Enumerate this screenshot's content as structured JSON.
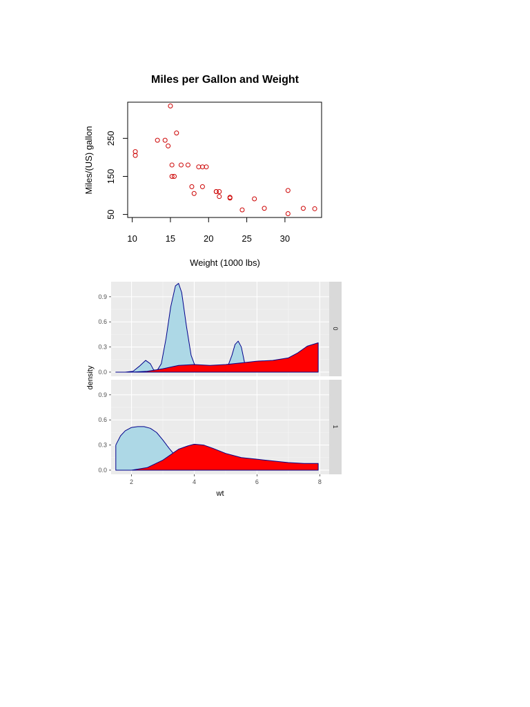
{
  "chart_data": [
    {
      "type": "scatter",
      "title": "Miles per Gallon and Weight",
      "xlabel": "Weight (1000 lbs)",
      "ylabel": "Miles/(US) gallon",
      "xlim": [
        9.4,
        34.8
      ],
      "ylim": [
        42,
        345
      ],
      "xticks": [
        "10",
        "15",
        "20",
        "25",
        "30"
      ],
      "xtick_values": [
        10,
        15,
        20,
        25,
        30
      ],
      "yticks": [
        "50",
        "150",
        "250"
      ],
      "ytick_values": [
        50,
        150,
        250
      ],
      "grid": false,
      "marker_color": "#cc0000",
      "points": [
        {
          "x": 10.4,
          "y": 215
        },
        {
          "x": 10.4,
          "y": 205
        },
        {
          "x": 13.3,
          "y": 245
        },
        {
          "x": 14.3,
          "y": 245
        },
        {
          "x": 14.7,
          "y": 230
        },
        {
          "x": 15.0,
          "y": 335
        },
        {
          "x": 15.2,
          "y": 180
        },
        {
          "x": 15.2,
          "y": 150
        },
        {
          "x": 15.5,
          "y": 150
        },
        {
          "x": 15.8,
          "y": 264
        },
        {
          "x": 16.4,
          "y": 180
        },
        {
          "x": 17.3,
          "y": 180
        },
        {
          "x": 17.8,
          "y": 123
        },
        {
          "x": 18.1,
          "y": 105
        },
        {
          "x": 18.7,
          "y": 175
        },
        {
          "x": 19.2,
          "y": 175
        },
        {
          "x": 19.2,
          "y": 123
        },
        {
          "x": 19.7,
          "y": 175
        },
        {
          "x": 21.0,
          "y": 110
        },
        {
          "x": 21.0,
          "y": 110
        },
        {
          "x": 21.4,
          "y": 110
        },
        {
          "x": 21.4,
          "y": 97
        },
        {
          "x": 22.8,
          "y": 93
        },
        {
          "x": 22.8,
          "y": 95
        },
        {
          "x": 24.4,
          "y": 62
        },
        {
          "x": 26.0,
          "y": 91
        },
        {
          "x": 27.3,
          "y": 66
        },
        {
          "x": 30.4,
          "y": 52
        },
        {
          "x": 30.4,
          "y": 113
        },
        {
          "x": 32.4,
          "y": 66
        },
        {
          "x": 33.9,
          "y": 65
        }
      ]
    },
    {
      "type": "area",
      "xlabel": "wt",
      "ylabel": "density",
      "xlim": [
        1.35,
        8.3
      ],
      "ylim": [
        -0.05,
        1.08
      ],
      "xticks": [
        "2",
        "4",
        "6",
        "8"
      ],
      "xtick_values": [
        2,
        4,
        6,
        8
      ],
      "yticks": [
        "0.0",
        "0.3",
        "0.6",
        "0.9"
      ],
      "ytick_values": [
        0.0,
        0.3,
        0.6,
        0.9
      ],
      "grid": true,
      "panels": [
        {
          "strip": "0",
          "series": [
            {
              "fill": "#add8e6",
              "stroke": "#00008b",
              "x": [
                1.5,
                1.8,
                2.05,
                2.25,
                2.45,
                2.6,
                2.7,
                2.8,
                2.95,
                3.1,
                3.25,
                3.4,
                3.5,
                3.6,
                3.75,
                3.9,
                4.05,
                4.2,
                4.4,
                4.8,
                5.05,
                5.2,
                5.3,
                5.4,
                5.5,
                5.6,
                5.7,
                6.0,
                6.5,
                7.0,
                7.5,
                7.95
              ],
              "y": [
                0,
                0,
                0.01,
                0.07,
                0.14,
                0.1,
                0.03,
                0.01,
                0.1,
                0.4,
                0.78,
                1.03,
                1.06,
                0.95,
                0.55,
                0.2,
                0.05,
                0.01,
                0.0,
                0.0,
                0.05,
                0.2,
                0.33,
                0.37,
                0.3,
                0.12,
                0.01,
                0.0,
                0.0,
                0.0,
                0.0,
                0.0
              ]
            },
            {
              "fill": "#ff0000",
              "stroke": "#00008b",
              "x": [
                1.5,
                2.0,
                2.5,
                3.0,
                3.5,
                4.0,
                4.5,
                5.0,
                5.5,
                6.0,
                6.5,
                7.0,
                7.3,
                7.6,
                7.95
              ],
              "y": [
                0,
                0.0,
                0.01,
                0.04,
                0.08,
                0.09,
                0.08,
                0.09,
                0.11,
                0.13,
                0.14,
                0.17,
                0.23,
                0.31,
                0.35
              ]
            }
          ]
        },
        {
          "strip": "1",
          "series": [
            {
              "fill": "#add8e6",
              "stroke": "#00008b",
              "x": [
                1.5,
                1.65,
                1.8,
                2.0,
                2.2,
                2.4,
                2.6,
                2.8,
                3.0,
                3.2,
                3.4,
                3.6,
                3.8,
                4.0,
                4.5,
                5.0,
                6.0,
                7.0,
                7.95
              ],
              "y": [
                0.3,
                0.41,
                0.47,
                0.51,
                0.52,
                0.52,
                0.5,
                0.45,
                0.36,
                0.26,
                0.17,
                0.09,
                0.04,
                0.01,
                0.0,
                0.0,
                0.0,
                0.0,
                0.0
              ]
            },
            {
              "fill": "#ff0000",
              "stroke": "#00008b",
              "x": [
                1.5,
                2.0,
                2.5,
                3.0,
                3.5,
                3.8,
                4.0,
                4.3,
                4.6,
                5.0,
                5.5,
                6.0,
                6.5,
                7.0,
                7.5,
                7.95
              ],
              "y": [
                0,
                0.0,
                0.03,
                0.12,
                0.25,
                0.29,
                0.31,
                0.3,
                0.26,
                0.2,
                0.15,
                0.13,
                0.11,
                0.09,
                0.08,
                0.08
              ]
            }
          ]
        }
      ]
    }
  ]
}
